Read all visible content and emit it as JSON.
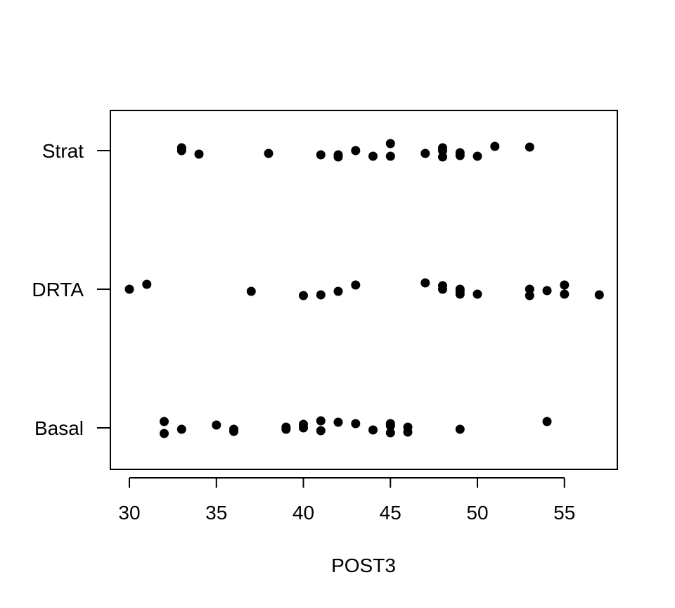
{
  "chart_data": {
    "type": "scatter",
    "subtype": "stripchart-jittered",
    "title": "",
    "xlabel": "POST3",
    "ylabel": "",
    "xlim": [
      29,
      58
    ],
    "x_ticks": [
      30,
      35,
      40,
      45,
      50,
      55
    ],
    "categories": [
      "Basal",
      "DRTA",
      "Strat"
    ],
    "marker_color": "#000000",
    "grid": false,
    "series": [
      {
        "category": "Basal",
        "points": [
          {
            "x": 32,
            "jitter": 0.09
          },
          {
            "x": 32,
            "jitter": -0.08
          },
          {
            "x": 33,
            "jitter": -0.02
          },
          {
            "x": 35,
            "jitter": 0.04
          },
          {
            "x": 36,
            "jitter": -0.02
          },
          {
            "x": 36,
            "jitter": -0.05
          },
          {
            "x": 39,
            "jitter": 0.01
          },
          {
            "x": 39,
            "jitter": -0.02
          },
          {
            "x": 40,
            "jitter": 0.05
          },
          {
            "x": 40,
            "jitter": 0.0
          },
          {
            "x": 41,
            "jitter": 0.1
          },
          {
            "x": 41,
            "jitter": -0.04
          },
          {
            "x": 42,
            "jitter": 0.08
          },
          {
            "x": 43,
            "jitter": 0.06
          },
          {
            "x": 44,
            "jitter": -0.03
          },
          {
            "x": 45,
            "jitter": 0.06
          },
          {
            "x": 45,
            "jitter": 0.03
          },
          {
            "x": 45,
            "jitter": -0.07
          },
          {
            "x": 46,
            "jitter": 0.01
          },
          {
            "x": 46,
            "jitter": -0.06
          },
          {
            "x": 49,
            "jitter": -0.02
          },
          {
            "x": 54,
            "jitter": 0.09
          }
        ]
      },
      {
        "category": "DRTA",
        "points": [
          {
            "x": 30,
            "jitter": 0.0
          },
          {
            "x": 31,
            "jitter": 0.07
          },
          {
            "x": 37,
            "jitter": -0.03
          },
          {
            "x": 40,
            "jitter": -0.09
          },
          {
            "x": 41,
            "jitter": -0.08
          },
          {
            "x": 42,
            "jitter": -0.03
          },
          {
            "x": 43,
            "jitter": 0.06
          },
          {
            "x": 47,
            "jitter": 0.09
          },
          {
            "x": 48,
            "jitter": 0.05
          },
          {
            "x": 48,
            "jitter": 0.0
          },
          {
            "x": 49,
            "jitter": 0.0
          },
          {
            "x": 49,
            "jitter": -0.03
          },
          {
            "x": 49,
            "jitter": -0.07
          },
          {
            "x": 50,
            "jitter": -0.07
          },
          {
            "x": 53,
            "jitter": 0.0
          },
          {
            "x": 53,
            "jitter": -0.09
          },
          {
            "x": 54,
            "jitter": -0.02
          },
          {
            "x": 55,
            "jitter": 0.06
          },
          {
            "x": 55,
            "jitter": -0.07
          },
          {
            "x": 57,
            "jitter": -0.08
          }
        ]
      },
      {
        "category": "Strat",
        "points": [
          {
            "x": 33,
            "jitter": 0.04
          },
          {
            "x": 33,
            "jitter": 0.0
          },
          {
            "x": 34,
            "jitter": -0.05
          },
          {
            "x": 38,
            "jitter": -0.04
          },
          {
            "x": 41,
            "jitter": -0.06
          },
          {
            "x": 42,
            "jitter": -0.06
          },
          {
            "x": 42,
            "jitter": -0.09
          },
          {
            "x": 43,
            "jitter": 0.0
          },
          {
            "x": 44,
            "jitter": -0.08
          },
          {
            "x": 45,
            "jitter": 0.1
          },
          {
            "x": 45,
            "jitter": -0.08
          },
          {
            "x": 47,
            "jitter": -0.04
          },
          {
            "x": 48,
            "jitter": 0.04
          },
          {
            "x": 48,
            "jitter": 0.0
          },
          {
            "x": 48,
            "jitter": -0.09
          },
          {
            "x": 49,
            "jitter": -0.03
          },
          {
            "x": 49,
            "jitter": -0.07
          },
          {
            "x": 50,
            "jitter": -0.08
          },
          {
            "x": 51,
            "jitter": 0.06
          },
          {
            "x": 53,
            "jitter": 0.05
          }
        ]
      }
    ]
  }
}
